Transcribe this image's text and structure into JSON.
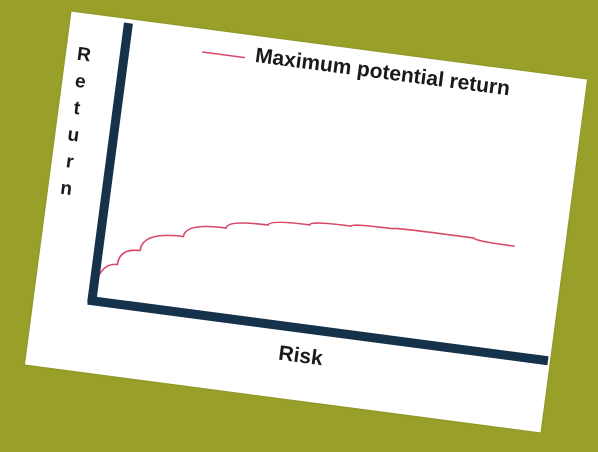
{
  "chart_data": {
    "type": "line",
    "title": "",
    "xlabel": "Risk",
    "ylabel": "Return",
    "xlim": [
      0,
      100
    ],
    "ylim": [
      0,
      100
    ],
    "grid": false,
    "legend_placement": "top",
    "series": [
      {
        "name": "Maximum potential return",
        "color": "#d84a6a",
        "x": [
          0,
          5,
          10,
          20,
          30,
          40,
          50,
          60,
          70,
          80,
          90,
          100
        ],
        "y": [
          0,
          14,
          20,
          27,
          32,
          35,
          37,
          38.5,
          39.5,
          40,
          40,
          39
        ]
      }
    ]
  },
  "colors": {
    "background": "#98a02a",
    "card": "#ffffff",
    "axes": "#16324a"
  }
}
